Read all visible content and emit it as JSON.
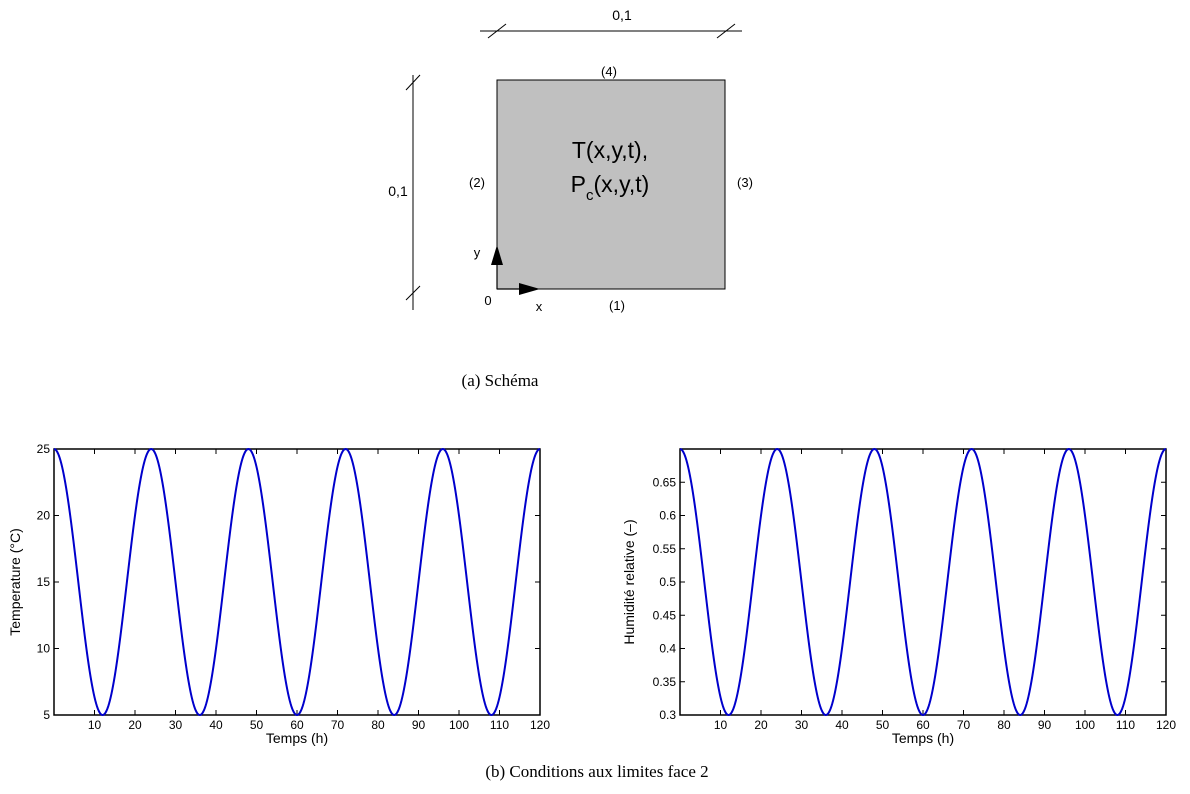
{
  "schema": {
    "dim_top": "0,1",
    "dim_left": "0,1",
    "face_1": "(1)",
    "face_2": "(2)",
    "face_3": "(3)",
    "face_4": "(4)",
    "field_line1": "T(x,y,t),",
    "field_line2_P": "P",
    "field_line2_sub": "c",
    "field_line2_rest": "(x,y,t)",
    "origin": "0",
    "axis_x": "x",
    "axis_y": "y",
    "fill_color": "#c0c0c0"
  },
  "captions": {
    "a": "(a) Schéma",
    "b": "(b) Conditions aux limites face 2"
  },
  "chart_data": [
    {
      "type": "line",
      "xlabel": "Temps (h)",
      "ylabel": "Temperature (°C)",
      "xlim": [
        0,
        120
      ],
      "ylim": [
        5,
        25
      ],
      "xticks": [
        10,
        20,
        30,
        40,
        50,
        60,
        70,
        80,
        90,
        100,
        110,
        120
      ],
      "yticks": [
        5,
        10,
        15,
        20,
        25
      ],
      "ytick_labels": [
        "5",
        "10",
        "15",
        "20",
        "25"
      ],
      "color": "#0000cc",
      "series": [
        {
          "x": [
            0,
            6,
            12,
            18,
            24,
            30,
            36,
            42,
            48,
            54,
            60,
            66,
            72,
            78,
            84,
            90,
            96,
            102,
            108,
            114,
            120
          ],
          "values": [
            25,
            15,
            5,
            15,
            25,
            15,
            5,
            15,
            25,
            15,
            5,
            15,
            25,
            15,
            5,
            15,
            25,
            15,
            5,
            15,
            25
          ]
        }
      ]
    },
    {
      "type": "line",
      "xlabel": "Temps (h)",
      "ylabel": "Humidité relative (–)",
      "xlim": [
        0,
        120
      ],
      "ylim": [
        0.3,
        0.7
      ],
      "xticks": [
        10,
        20,
        30,
        40,
        50,
        60,
        70,
        80,
        90,
        100,
        110,
        120
      ],
      "yticks": [
        0.3,
        0.35,
        0.4,
        0.45,
        0.5,
        0.55,
        0.6,
        0.65
      ],
      "ytick_labels": [
        "0.3",
        "0.35",
        "0.4",
        "0.45",
        "0.5",
        "0.55",
        "0.6",
        "0.65"
      ],
      "color": "#0000cc",
      "series": [
        {
          "x": [
            0,
            6,
            12,
            18,
            24,
            30,
            36,
            42,
            48,
            54,
            60,
            66,
            72,
            78,
            84,
            90,
            96,
            102,
            108,
            114,
            120
          ],
          "values": [
            0.7,
            0.5,
            0.3,
            0.5,
            0.7,
            0.5,
            0.3,
            0.5,
            0.7,
            0.5,
            0.3,
            0.5,
            0.7,
            0.5,
            0.3,
            0.5,
            0.7,
            0.5,
            0.3,
            0.5,
            0.7
          ]
        }
      ]
    }
  ]
}
